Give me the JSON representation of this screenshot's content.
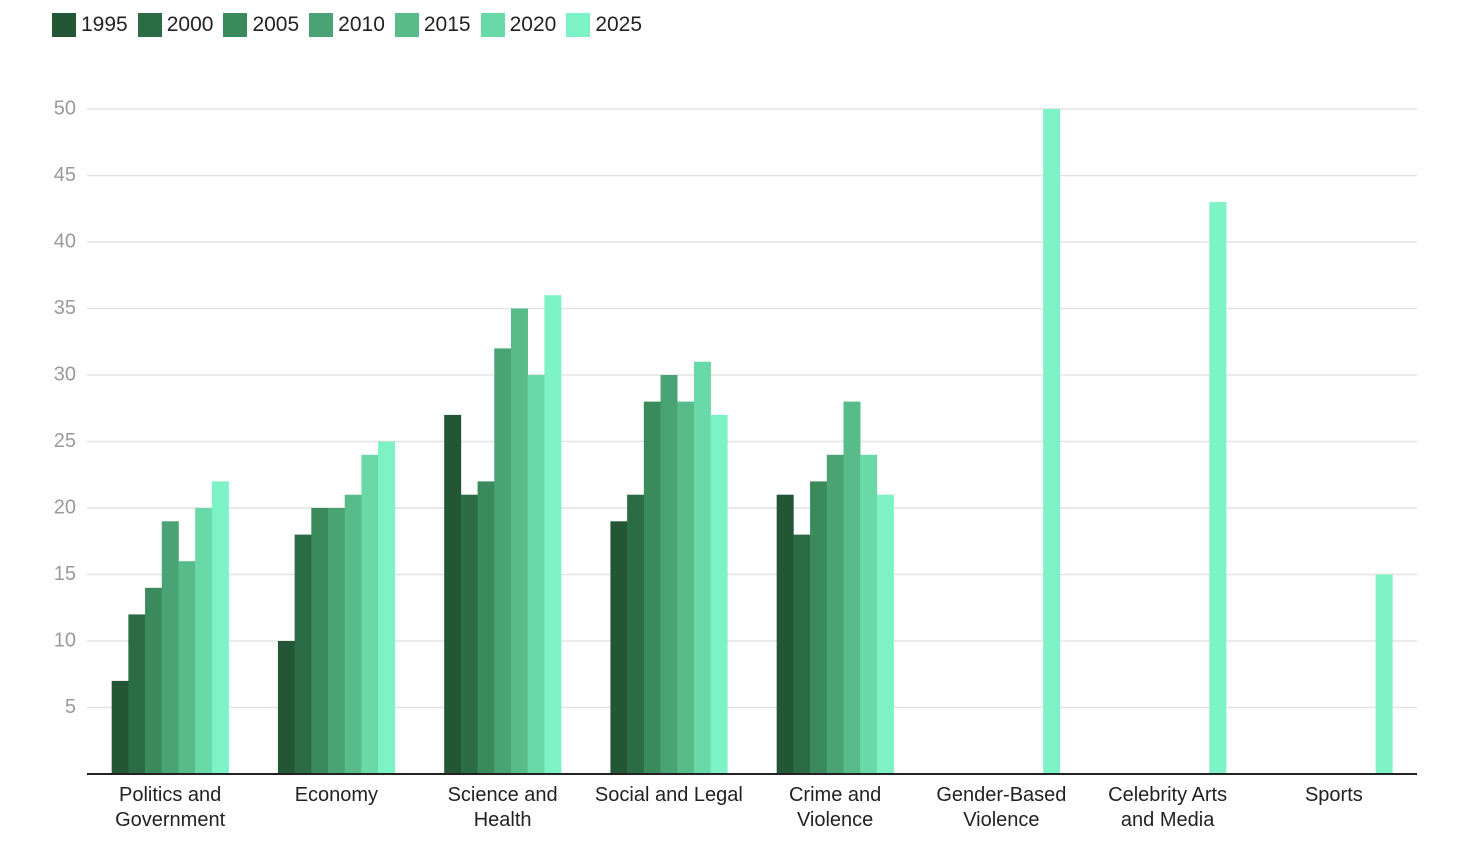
{
  "chart_data": {
    "type": "bar",
    "categories": [
      "Politics and Government",
      "Economy",
      "Science and Health",
      "Social and Legal",
      "Crime and Violence",
      "Gender-Based Violence",
      "Celebrity Arts and Media",
      "Sports"
    ],
    "series": [
      {
        "name": "1995",
        "color": "#235634",
        "values": [
          7,
          10,
          27,
          19,
          21,
          null,
          null,
          null
        ]
      },
      {
        "name": "2000",
        "color": "#2b6b45",
        "values": [
          12,
          18,
          21,
          21,
          18,
          null,
          null,
          null
        ]
      },
      {
        "name": "2005",
        "color": "#3a8a5c",
        "values": [
          14,
          20,
          22,
          28,
          22,
          null,
          null,
          null
        ]
      },
      {
        "name": "2010",
        "color": "#4aa374",
        "values": [
          19,
          20,
          32,
          30,
          24,
          null,
          null,
          null
        ]
      },
      {
        "name": "2015",
        "color": "#58bb8a",
        "values": [
          16,
          21,
          35,
          28,
          28,
          null,
          null,
          null
        ]
      },
      {
        "name": "2020",
        "color": "#69d9a8",
        "values": [
          20,
          24,
          30,
          31,
          24,
          null,
          null,
          null
        ]
      },
      {
        "name": "2025",
        "color": "#7df2c4",
        "values": [
          22,
          25,
          36,
          27,
          21,
          50,
          43,
          15
        ]
      }
    ],
    "ylim": [
      0,
      50
    ],
    "yticks": [
      5,
      10,
      15,
      20,
      25,
      30,
      35,
      40,
      45,
      50
    ],
    "grid": true,
    "legend": "top-left"
  }
}
